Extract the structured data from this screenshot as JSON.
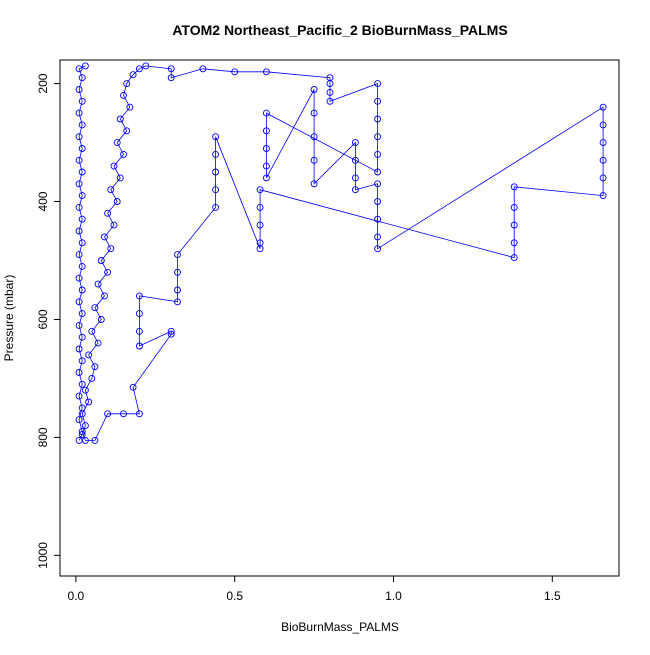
{
  "chart_data": {
    "type": "scatter",
    "title": "ATOM2 Northeast_Pacific_2 BioBurnMass_PALMS",
    "xlabel": "BioBurnMass_PALMS",
    "ylabel": "Pressure (mbar)",
    "xlim": [
      -0.05,
      1.71
    ],
    "ylim": [
      1035,
      160
    ],
    "y_inverted": true,
    "x_ticks": [
      0.0,
      0.5,
      1.0,
      1.5
    ],
    "x_tick_labels": [
      "0.0",
      "0.5",
      "1.0",
      "1.5"
    ],
    "y_ticks": [
      200,
      400,
      600,
      800,
      1000
    ],
    "y_tick_labels": [
      "200",
      "400",
      "600",
      "800",
      "1000"
    ],
    "marker": "open-circle",
    "connected": true,
    "color": "#0000ff",
    "grid": false,
    "legend": "none",
    "series": [
      {
        "points": [
          [
            0.01,
            805
          ],
          [
            0.02,
            795
          ],
          [
            0.03,
            780
          ],
          [
            0.02,
            760
          ],
          [
            0.04,
            740
          ],
          [
            0.03,
            720
          ],
          [
            0.05,
            700
          ],
          [
            0.06,
            680
          ],
          [
            0.04,
            660
          ],
          [
            0.07,
            640
          ],
          [
            0.05,
            620
          ],
          [
            0.08,
            600
          ],
          [
            0.06,
            580
          ],
          [
            0.09,
            560
          ],
          [
            0.07,
            540
          ],
          [
            0.1,
            520
          ],
          [
            0.08,
            500
          ],
          [
            0.11,
            480
          ],
          [
            0.09,
            460
          ],
          [
            0.12,
            440
          ],
          [
            0.1,
            420
          ],
          [
            0.13,
            400
          ],
          [
            0.11,
            380
          ],
          [
            0.14,
            360
          ],
          [
            0.12,
            340
          ],
          [
            0.15,
            320
          ],
          [
            0.13,
            300
          ],
          [
            0.16,
            280
          ],
          [
            0.14,
            260
          ],
          [
            0.17,
            240
          ],
          [
            0.15,
            220
          ],
          [
            0.16,
            200
          ],
          [
            0.18,
            185
          ],
          [
            0.2,
            175
          ],
          [
            0.22,
            170
          ],
          [
            0.3,
            175
          ],
          [
            0.3,
            190
          ],
          [
            0.4,
            175
          ],
          [
            0.5,
            180
          ],
          [
            0.6,
            180
          ],
          [
            0.8,
            190
          ],
          [
            0.8,
            200
          ],
          [
            0.8,
            215
          ],
          [
            0.8,
            230
          ],
          [
            0.95,
            200
          ],
          [
            0.95,
            230
          ],
          [
            0.95,
            260
          ],
          [
            0.95,
            290
          ],
          [
            0.95,
            320
          ],
          [
            0.95,
            350
          ],
          [
            0.6,
            250
          ],
          [
            0.6,
            280
          ],
          [
            0.6,
            310
          ],
          [
            0.6,
            340
          ],
          [
            0.6,
            360
          ],
          [
            0.75,
            210
          ],
          [
            0.75,
            250
          ],
          [
            0.75,
            290
          ],
          [
            0.75,
            330
          ],
          [
            0.75,
            370
          ],
          [
            0.88,
            300
          ],
          [
            0.88,
            330
          ],
          [
            0.88,
            360
          ],
          [
            0.88,
            380
          ],
          [
            0.95,
            370
          ],
          [
            0.95,
            400
          ],
          [
            0.95,
            430
          ],
          [
            0.95,
            460
          ],
          [
            0.95,
            480
          ],
          [
            1.66,
            240
          ],
          [
            1.66,
            270
          ],
          [
            1.66,
            300
          ],
          [
            1.66,
            330
          ],
          [
            1.66,
            360
          ],
          [
            1.66,
            390
          ],
          [
            1.38,
            375
          ],
          [
            1.38,
            410
          ],
          [
            1.38,
            440
          ],
          [
            1.38,
            470
          ],
          [
            1.38,
            495
          ],
          [
            0.58,
            380
          ],
          [
            0.58,
            410
          ],
          [
            0.58,
            440
          ],
          [
            0.58,
            470
          ],
          [
            0.58,
            480
          ],
          [
            0.44,
            290
          ],
          [
            0.44,
            320
          ],
          [
            0.44,
            350
          ],
          [
            0.44,
            380
          ],
          [
            0.44,
            410
          ],
          [
            0.32,
            490
          ],
          [
            0.32,
            520
          ],
          [
            0.32,
            550
          ],
          [
            0.32,
            570
          ],
          [
            0.2,
            560
          ],
          [
            0.2,
            590
          ],
          [
            0.2,
            620
          ],
          [
            0.2,
            645
          ],
          [
            0.3,
            620
          ],
          [
            0.3,
            625
          ],
          [
            0.18,
            715
          ],
          [
            0.2,
            760
          ],
          [
            0.15,
            760
          ],
          [
            0.1,
            760
          ],
          [
            0.06,
            805
          ],
          [
            0.03,
            805
          ],
          [
            0.02,
            790
          ],
          [
            0.01,
            770
          ],
          [
            0.02,
            750
          ],
          [
            0.01,
            730
          ],
          [
            0.02,
            710
          ],
          [
            0.01,
            690
          ],
          [
            0.02,
            670
          ],
          [
            0.01,
            650
          ],
          [
            0.02,
            630
          ],
          [
            0.01,
            610
          ],
          [
            0.02,
            590
          ],
          [
            0.01,
            570
          ],
          [
            0.02,
            550
          ],
          [
            0.01,
            530
          ],
          [
            0.02,
            510
          ],
          [
            0.01,
            490
          ],
          [
            0.02,
            470
          ],
          [
            0.01,
            450
          ],
          [
            0.02,
            430
          ],
          [
            0.01,
            410
          ],
          [
            0.02,
            390
          ],
          [
            0.01,
            370
          ],
          [
            0.02,
            350
          ],
          [
            0.01,
            330
          ],
          [
            0.02,
            310
          ],
          [
            0.01,
            290
          ],
          [
            0.02,
            270
          ],
          [
            0.01,
            250
          ],
          [
            0.02,
            230
          ],
          [
            0.01,
            210
          ],
          [
            0.02,
            190
          ],
          [
            0.01,
            175
          ],
          [
            0.03,
            170
          ]
        ]
      }
    ]
  }
}
